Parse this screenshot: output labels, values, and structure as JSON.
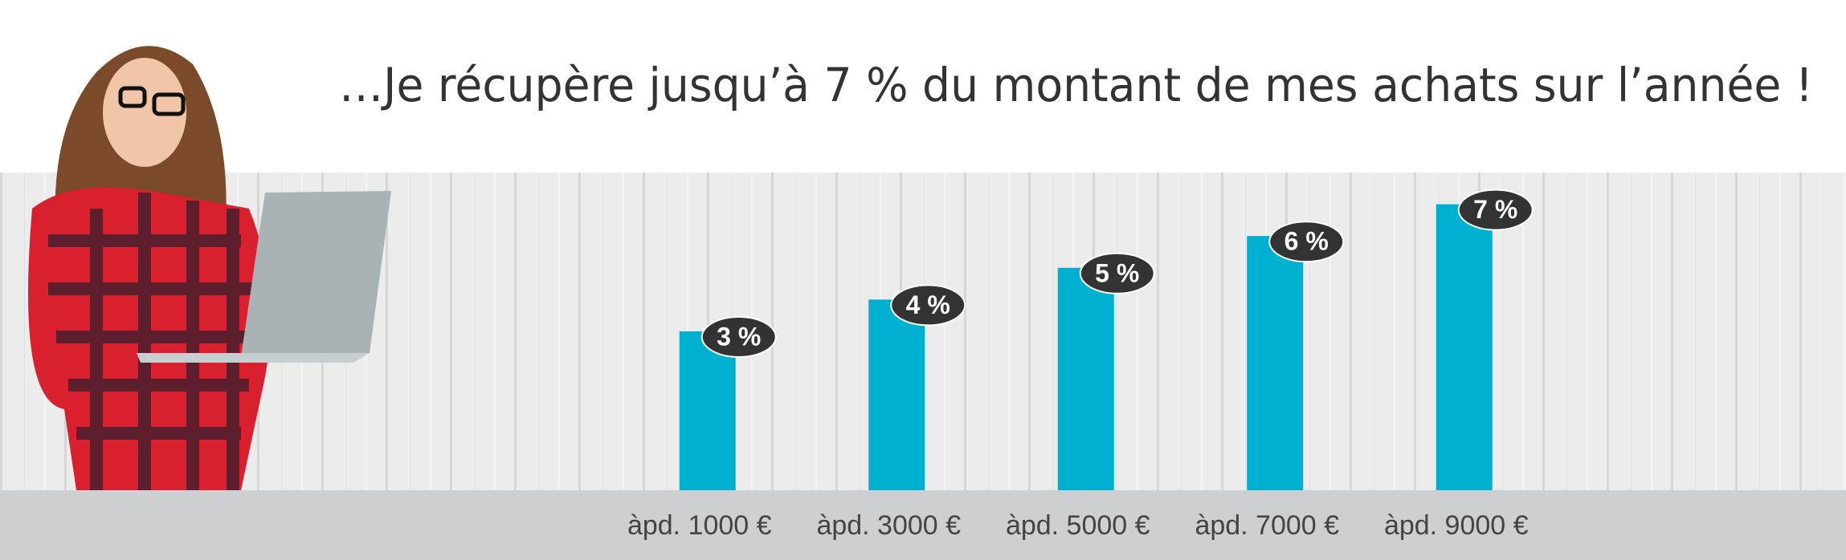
{
  "chart_data": {
    "type": "bar",
    "title": "…Je récupère jusqu’à 7 % du montant de mes achats sur l’année !",
    "categories": [
      "àpd. 1000 €",
      "àpd. 3000 €",
      "àpd. 5000 €",
      "àpd. 7000 €",
      "àpd. 9000 €"
    ],
    "values": [
      3,
      4,
      5,
      6,
      7
    ],
    "value_labels": [
      "3 %",
      "4 %",
      "5 %",
      "6 %",
      "7 %"
    ],
    "color": "#00b0d0",
    "ylim": [
      -2,
      8
    ]
  }
}
